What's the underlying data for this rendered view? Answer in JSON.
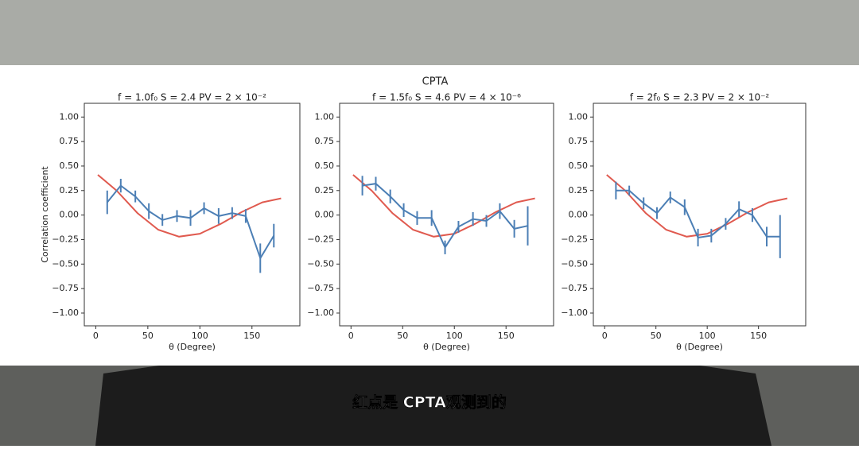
{
  "suptitle": "CPTA",
  "caption": "红点是 CPTA观测到的",
  "chart_data": [
    {
      "type": "line",
      "title": "f = 1.0f₀ S = 2.4 PV = 2 × 10⁻²",
      "xlabel": "θ (Degree)",
      "ylabel": "Correlation coefficient",
      "xlim": [
        -11,
        196
      ],
      "ylim": [
        -1.13,
        1.14
      ],
      "xticks": [
        0,
        50,
        100,
        150
      ],
      "yticks": [
        {
          "value": -1,
          "label": "−1.00"
        },
        {
          "value": -0.75,
          "label": "−0.75"
        },
        {
          "value": -0.5,
          "label": "−0.50"
        },
        {
          "value": -0.25,
          "label": "−0.25"
        },
        {
          "value": 0,
          "label": "0.00"
        },
        {
          "value": 0.25,
          "label": "0.25"
        },
        {
          "value": 0.5,
          "label": "0.50"
        },
        {
          "value": 0.75,
          "label": "0.75"
        },
        {
          "value": 1,
          "label": "1.00"
        }
      ],
      "series": [
        {
          "color": "#e05a4f",
          "x": [
            2,
            20,
            40,
            60,
            80,
            100,
            120,
            140,
            160,
            178
          ],
          "values": [
            0.41,
            0.25,
            0.02,
            -0.15,
            -0.22,
            -0.19,
            -0.09,
            0.03,
            0.13,
            0.17
          ]
        },
        {
          "color": "#4c7fb5",
          "x": [
            11,
            24,
            38,
            51,
            64,
            78,
            91,
            104,
            118,
            131,
            144,
            158,
            171
          ],
          "values": [
            0.13,
            0.3,
            0.19,
            0.04,
            -0.05,
            -0.01,
            -0.03,
            0.07,
            -0.01,
            0.02,
            -0.01,
            -0.44,
            -0.21
          ],
          "errors": [
            0.12,
            0.07,
            0.06,
            0.08,
            0.06,
            0.06,
            0.08,
            0.06,
            0.08,
            0.06,
            0.07,
            0.15,
            0.12
          ]
        }
      ]
    },
    {
      "type": "line",
      "title": "f = 1.5f₀ S = 4.6 PV = 4 × 10⁻⁶",
      "xlabel": "θ (Degree)",
      "xlim": [
        -11,
        196
      ],
      "ylim": [
        -1.13,
        1.14
      ],
      "xticks": [
        0,
        50,
        100,
        150
      ],
      "yticks": [
        {
          "value": -1,
          "label": "−1.00"
        },
        {
          "value": -0.75,
          "label": "−0.75"
        },
        {
          "value": -0.5,
          "label": "−0.50"
        },
        {
          "value": -0.25,
          "label": "−0.25"
        },
        {
          "value": 0,
          "label": "0.00"
        },
        {
          "value": 0.25,
          "label": "0.25"
        },
        {
          "value": 0.5,
          "label": "0.50"
        },
        {
          "value": 0.75,
          "label": "0.75"
        },
        {
          "value": 1,
          "label": "1.00"
        }
      ],
      "series": [
        {
          "color": "#e05a4f",
          "x": [
            2,
            20,
            40,
            60,
            80,
            100,
            120,
            140,
            160,
            178
          ],
          "values": [
            0.41,
            0.25,
            0.02,
            -0.15,
            -0.22,
            -0.19,
            -0.09,
            0.03,
            0.13,
            0.17
          ]
        },
        {
          "color": "#4c7fb5",
          "x": [
            11,
            24,
            38,
            51,
            64,
            78,
            91,
            104,
            118,
            131,
            144,
            158,
            171
          ],
          "values": [
            0.3,
            0.32,
            0.19,
            0.05,
            -0.03,
            -0.03,
            -0.33,
            -0.12,
            -0.04,
            -0.06,
            0.04,
            -0.14,
            -0.11
          ],
          "errors": [
            0.1,
            0.07,
            0.07,
            0.07,
            0.07,
            0.08,
            0.07,
            0.06,
            0.07,
            0.06,
            0.08,
            0.09,
            0.2
          ]
        }
      ]
    },
    {
      "type": "line",
      "title": "f = 2f₀ S = 2.3 PV = 2 × 10⁻²",
      "xlabel": "θ (Degree)",
      "xlim": [
        -11,
        196
      ],
      "ylim": [
        -1.13,
        1.14
      ],
      "xticks": [
        0,
        50,
        100,
        150
      ],
      "yticks": [
        {
          "value": -1,
          "label": "−1.00"
        },
        {
          "value": -0.75,
          "label": "−0.75"
        },
        {
          "value": -0.5,
          "label": "−0.50"
        },
        {
          "value": -0.25,
          "label": "−0.25"
        },
        {
          "value": 0,
          "label": "0.00"
        },
        {
          "value": 0.25,
          "label": "0.25"
        },
        {
          "value": 0.5,
          "label": "0.50"
        },
        {
          "value": 0.75,
          "label": "0.75"
        },
        {
          "value": 1,
          "label": "1.00"
        }
      ],
      "series": [
        {
          "color": "#e05a4f",
          "x": [
            2,
            20,
            40,
            60,
            80,
            100,
            120,
            140,
            160,
            178
          ],
          "values": [
            0.41,
            0.25,
            0.02,
            -0.15,
            -0.22,
            -0.19,
            -0.09,
            0.03,
            0.13,
            0.17
          ]
        },
        {
          "color": "#4c7fb5",
          "x": [
            11,
            24,
            38,
            51,
            64,
            78,
            91,
            104,
            118,
            131,
            144,
            158,
            171
          ],
          "values": [
            0.25,
            0.25,
            0.12,
            0.02,
            0.18,
            0.08,
            -0.23,
            -0.21,
            -0.09,
            0.06,
            0.0,
            -0.22,
            -0.22
          ],
          "errors": [
            0.09,
            0.05,
            0.06,
            0.06,
            0.06,
            0.08,
            0.09,
            0.07,
            0.06,
            0.08,
            0.07,
            0.1,
            0.22
          ]
        }
      ]
    }
  ]
}
